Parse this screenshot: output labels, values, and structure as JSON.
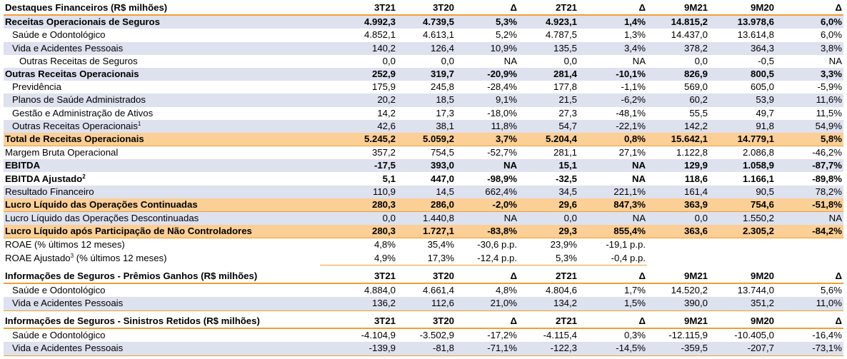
{
  "columns": [
    "3T21",
    "3T20",
    "Δ",
    "2T21",
    "Δ",
    "9M21",
    "9M20",
    "Δ"
  ],
  "highlights": {
    "title": "Destaques Financeiros (R$ milhões)",
    "rows": [
      {
        "label": "Receitas Operacionais de Seguros",
        "sup": "",
        "style": "bold blue",
        "indent": 0,
        "values": [
          "4.992,3",
          "4.739,5",
          "5,3%",
          "4.923,1",
          "1,4%",
          "14.815,2",
          "13.978,6",
          "6,0%"
        ]
      },
      {
        "label": "Saúde e Odontológico",
        "sup": "",
        "style": "",
        "indent": 1,
        "values": [
          "4.852,1",
          "4.613,1",
          "5,2%",
          "4.787,5",
          "1,3%",
          "14.437,0",
          "13.614,8",
          "6,0%"
        ]
      },
      {
        "label": "Vida e Acidentes Pessoais",
        "sup": "",
        "style": "blue",
        "indent": 1,
        "values": [
          "140,2",
          "126,4",
          "10,9%",
          "135,5",
          "3,4%",
          "378,2",
          "364,3",
          "3,8%"
        ]
      },
      {
        "label": "Outras Receitas de Seguros",
        "sup": "",
        "style": "",
        "indent": 2,
        "values": [
          "0,0",
          "0,0",
          "NA",
          "0,0",
          "NA",
          "0,0",
          "-0,5",
          "NA"
        ]
      },
      {
        "label": "Outras Receitas Operacionais",
        "sup": "",
        "style": "bold blue",
        "indent": 0,
        "values": [
          "252,9",
          "319,7",
          "-20,9%",
          "281,4",
          "-10,1%",
          "826,9",
          "800,5",
          "3,3%"
        ]
      },
      {
        "label": "Previdência",
        "sup": "",
        "style": "",
        "indent": 1,
        "values": [
          "175,9",
          "245,8",
          "-28,4%",
          "177,8",
          "-1,1%",
          "569,0",
          "605,0",
          "-5,9%"
        ]
      },
      {
        "label": "Planos de Saúde Administrados",
        "sup": "",
        "style": "blue",
        "indent": 1,
        "values": [
          "20,2",
          "18,5",
          "9,1%",
          "21,5",
          "-6,2%",
          "60,2",
          "53,9",
          "11,6%"
        ]
      },
      {
        "label": "Gestão e Administração de Ativos",
        "sup": "",
        "style": "",
        "indent": 1,
        "values": [
          "14,2",
          "17,3",
          "-18,0%",
          "27,3",
          "-48,1%",
          "55,5",
          "49,7",
          "11,5%"
        ]
      },
      {
        "label": "Outras Receitas Operacionais",
        "sup": "1",
        "style": "blue",
        "indent": 1,
        "values": [
          "42,6",
          "38,1",
          "11,8%",
          "54,7",
          "-22,1%",
          "142,2",
          "91,8",
          "54,9%"
        ]
      },
      {
        "label": "Total de Receitas Operacionais",
        "sup": "",
        "style": "total",
        "indent": 0,
        "values": [
          "5.245,2",
          "5.059,2",
          "3,7%",
          "5.204,4",
          "0,8%",
          "15.642,1",
          "14.779,1",
          "5,8%"
        ]
      },
      {
        "label": "Margem Bruta Operacional",
        "sup": "",
        "style": "",
        "indent": 0,
        "values": [
          "357,2",
          "754,5",
          "-52,7%",
          "281,1",
          "27,1%",
          "1.122,8",
          "2.086,8",
          "-46,2%"
        ]
      },
      {
        "label": "EBITDA",
        "sup": "",
        "style": "bold blue",
        "indent": 0,
        "values": [
          "-17,5",
          "393,0",
          "NA",
          "15,1",
          "NA",
          "129,9",
          "1.058,9",
          "-87,7%"
        ]
      },
      {
        "label": "EBITDA Ajustado",
        "sup": "2",
        "style": "bold",
        "indent": 0,
        "values": [
          "5,1",
          "447,0",
          "-98,9%",
          "-32,5",
          "NA",
          "118,6",
          "1.166,1",
          "-89,8%"
        ]
      },
      {
        "label": "Resultado Financeiro",
        "sup": "",
        "style": "blue",
        "indent": 0,
        "values": [
          "110,9",
          "14,5",
          "662,4%",
          "34,5",
          "221,1%",
          "161,4",
          "90,5",
          "78,2%"
        ]
      },
      {
        "label": "Lucro Líquido das Operações Continuadas",
        "sup": "",
        "style": "total",
        "indent": 0,
        "values": [
          "280,3",
          "286,0",
          "-2,0%",
          "29,6",
          "847,3%",
          "363,9",
          "754,6",
          "-51,8%"
        ]
      },
      {
        "label": "Lucro Líquido das Operações Descontinuadas",
        "sup": "",
        "style": "blue",
        "indent": 0,
        "values": [
          "0,0",
          "1.440,8",
          "NA",
          "0,0",
          "NA",
          "0,0",
          "1.550,2",
          "NA"
        ]
      },
      {
        "label": "Lucro Líquido após Participação de Não Controladores",
        "sup": "",
        "style": "total",
        "indent": 0,
        "values": [
          "280,3",
          "1.727,1",
          "-83,8%",
          "29,3",
          "855,4%",
          "363,6",
          "2.305,2",
          "-84,2%"
        ]
      }
    ],
    "roae_rows": [
      {
        "label": "ROAE (% últimos 12 meses)",
        "sup": "",
        "after_sup": "",
        "values": [
          "4,8%",
          "35,4%",
          "-30,6 p.p.",
          "23,9%",
          "-19,1 p.p."
        ]
      },
      {
        "label": "ROAE Ajustado",
        "sup": "3",
        "after_sup": " (% últimos 12 meses)",
        "values": [
          "4,9%",
          "17,3%",
          "-12,4 p.p.",
          "5,3%",
          "-0,4 p.p."
        ]
      }
    ]
  },
  "premiums": {
    "title": "Informações de Seguros - Prêmios Ganhos (R$ milhões)",
    "rows": [
      {
        "label": "Saúde e Odontológico",
        "values": [
          "4.884,0",
          "4.661,4",
          "4,8%",
          "4.804,6",
          "1,7%",
          "14.520,2",
          "13.744,0",
          "5,6%"
        ]
      },
      {
        "label": "Vida e Acidentes Pessoais",
        "values": [
          "136,2",
          "112,6",
          "21,0%",
          "134,2",
          "1,5%",
          "390,0",
          "351,2",
          "11,0%"
        ]
      }
    ]
  },
  "claims": {
    "title": "Informações de Seguros - Sinistros Retidos (R$ milhões)",
    "rows": [
      {
        "label": "Saúde e Odontológico",
        "values": [
          "-4.104,9",
          "-3.502,9",
          "-17,2%",
          "-4.115,4",
          "0,3%",
          "-12.115,9",
          "-10.405,0",
          "-16,4%"
        ]
      },
      {
        "label": "Vida e Acidentes Pessoais",
        "values": [
          "-139,9",
          "-81,8",
          "-71,1%",
          "-122,3",
          "-14,5%",
          "-359,5",
          "-207,7",
          "-73,1%"
        ]
      }
    ]
  }
}
